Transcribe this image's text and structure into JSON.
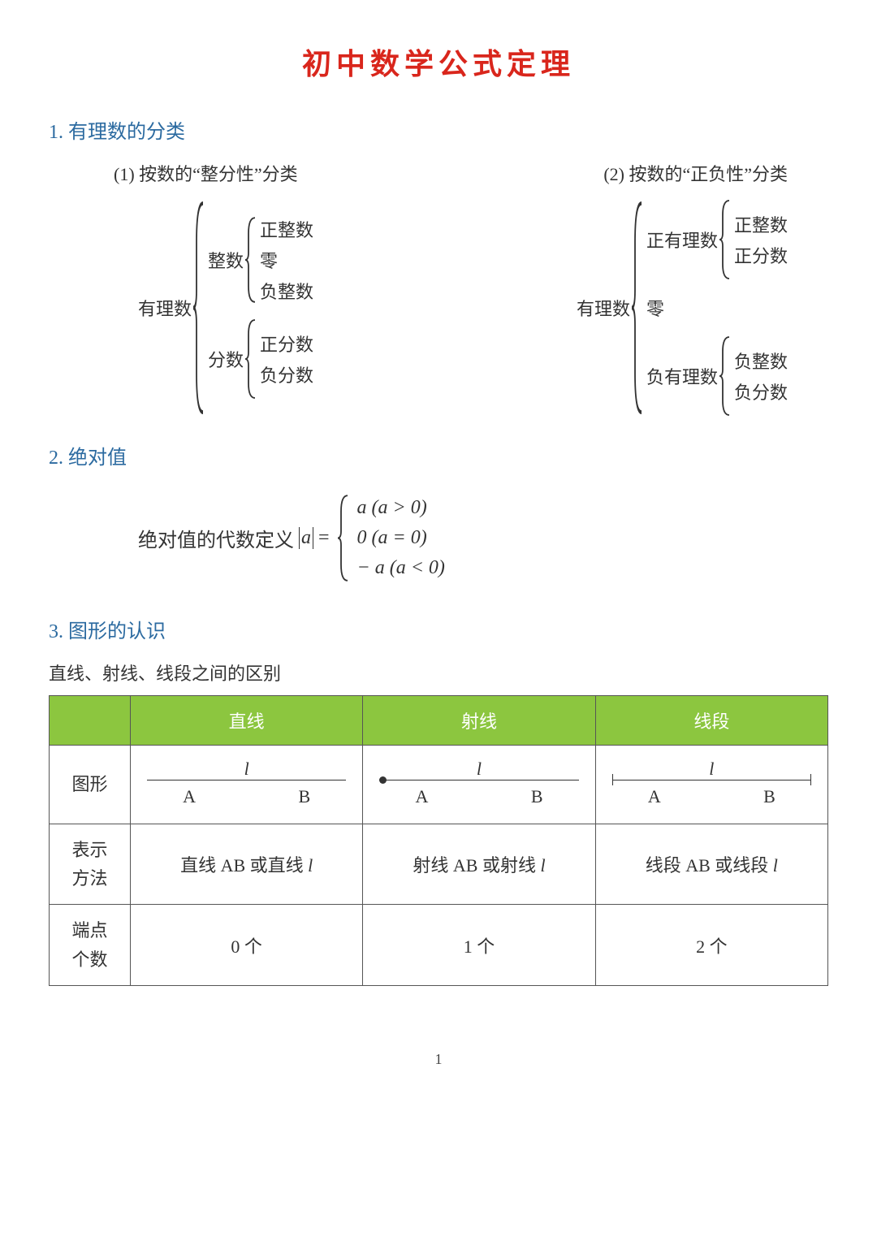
{
  "colors": {
    "title": "#d9261c",
    "heading": "#2b6aa0",
    "body": "#333333",
    "table_header_bg": "#8cc63f",
    "table_header_fg": "#ffffff",
    "table_border": "#555555"
  },
  "page_number": "1",
  "title": "初中数学公式定理",
  "section1": {
    "heading": "1. 有理数的分类",
    "sub1": "(1) 按数的“整分性”分类",
    "sub2": "(2) 按数的“正负性”分类",
    "tree1": {
      "root": "有理数",
      "branches": [
        {
          "label": "整数",
          "leaves": [
            "正整数",
            "零",
            "负整数"
          ]
        },
        {
          "label": "分数",
          "leaves": [
            "正分数",
            "负分数"
          ]
        }
      ]
    },
    "tree2": {
      "root": "有理数",
      "branches": [
        {
          "label": "正有理数",
          "leaves": [
            "正整数",
            "正分数"
          ]
        },
        {
          "label": "零",
          "leaves": []
        },
        {
          "label": "负有理数",
          "leaves": [
            "负整数",
            "负分数"
          ]
        }
      ]
    }
  },
  "section2": {
    "heading": "2. 绝对值",
    "prefix": "绝对值的代数定义",
    "var": "a",
    "eq": "=",
    "cases": [
      "a (a > 0)",
      "0 (a = 0)",
      "− a (a < 0)"
    ]
  },
  "section3": {
    "heading": "3. 图形的认识",
    "subtitle": "直线、射线、线段之间的区别",
    "table": {
      "columns": [
        "直线",
        "射线",
        "线段"
      ],
      "row_labels": [
        "图形",
        "表示方法",
        "端点个数"
      ],
      "figure_label_top": "l",
      "figure_label_A": "A",
      "figure_label_B": "B",
      "figures": [
        {
          "type": "line",
          "left_end": "none",
          "right_end": "none"
        },
        {
          "type": "ray",
          "left_end": "dot",
          "right_end": "none"
        },
        {
          "type": "segment",
          "left_end": "tick",
          "right_end": "tick"
        }
      ],
      "notation": [
        "直线 AB 或直线 l",
        "射线 AB 或射线 l",
        "线段 AB 或线段 l"
      ],
      "endpoints": [
        "0 个",
        "1 个",
        "2 个"
      ]
    }
  }
}
